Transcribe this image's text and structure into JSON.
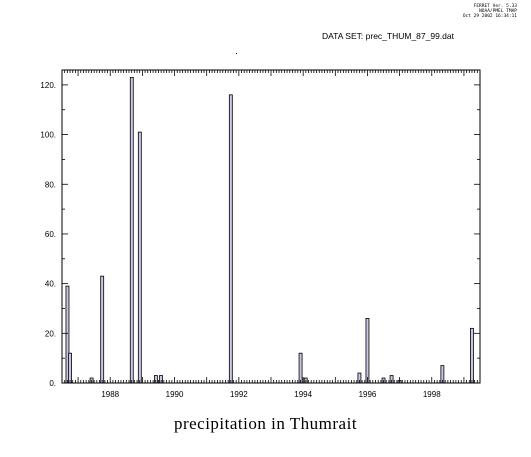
{
  "header": {
    "credit_lines": [
      "FERRET Ver. 5.33",
      "NOAA/PMEL TMAP",
      "Oct 29 2002 16:34:11"
    ],
    "dataset_label": "DATA SET:",
    "dataset_name": "prec_THUM_87_99.dat"
  },
  "chart_data": {
    "type": "bar",
    "title": "precipitation in Thumrait",
    "xlabel": "",
    "ylabel": "",
    "ylim": [
      0,
      126
    ],
    "yticks": [
      0,
      20,
      40,
      60,
      80,
      100,
      120
    ],
    "ytick_labels": [
      "0.",
      "20.",
      "40.",
      "60.",
      "80.",
      "100.",
      "120."
    ],
    "xlim": [
      1986.5,
      1999.5
    ],
    "xticks": [
      1988,
      1990,
      1992,
      1994,
      1996,
      1998
    ],
    "xtick_labels": [
      "1988",
      "1990",
      "1992",
      "1994",
      "1996",
      "1998"
    ],
    "grid": false,
    "bar_fill": "#c8c8e6",
    "bar_stroke": "#000000",
    "points": [
      {
        "x": 1986.67,
        "y": 39
      },
      {
        "x": 1986.75,
        "y": 12
      },
      {
        "x": 1987.42,
        "y": 2
      },
      {
        "x": 1987.75,
        "y": 43
      },
      {
        "x": 1988.67,
        "y": 123
      },
      {
        "x": 1988.92,
        "y": 101
      },
      {
        "x": 1989.42,
        "y": 3
      },
      {
        "x": 1989.58,
        "y": 3
      },
      {
        "x": 1991.75,
        "y": 116
      },
      {
        "x": 1993.92,
        "y": 12
      },
      {
        "x": 1994.08,
        "y": 2
      },
      {
        "x": 1995.75,
        "y": 4
      },
      {
        "x": 1996.0,
        "y": 26
      },
      {
        "x": 1996.5,
        "y": 2
      },
      {
        "x": 1996.75,
        "y": 3
      },
      {
        "x": 1997.0,
        "y": 1
      },
      {
        "x": 1998.33,
        "y": 7
      },
      {
        "x": 1999.25,
        "y": 22
      }
    ]
  }
}
